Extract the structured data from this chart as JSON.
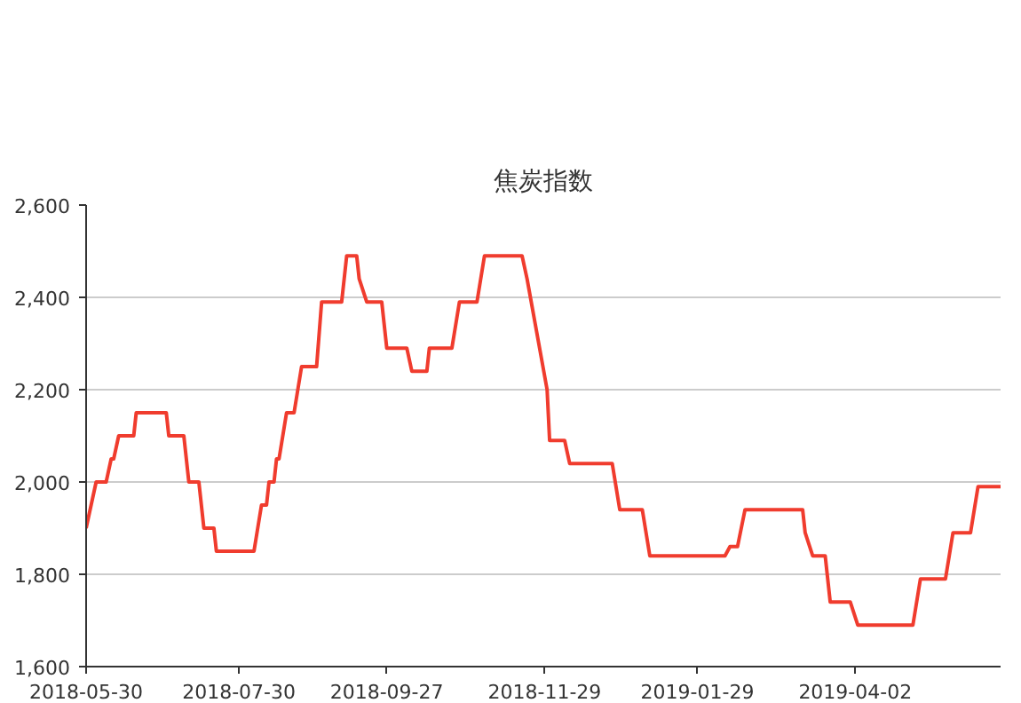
{
  "chart_data": {
    "type": "line",
    "title": "焦炭指数",
    "x": [
      "2018-05-30",
      "2018-06-03",
      "2018-06-07",
      "2018-06-09",
      "2018-06-10",
      "2018-06-12",
      "2018-06-18",
      "2018-06-19",
      "2018-07-01",
      "2018-07-02",
      "2018-07-08",
      "2018-07-10",
      "2018-07-14",
      "2018-07-16",
      "2018-07-20",
      "2018-07-21",
      "2018-08-05",
      "2018-08-08",
      "2018-08-10",
      "2018-08-11",
      "2018-08-13",
      "2018-08-14",
      "2018-08-15",
      "2018-08-18",
      "2018-08-21",
      "2018-08-24",
      "2018-08-30",
      "2018-09-01",
      "2018-09-09",
      "2018-09-11",
      "2018-09-15",
      "2018-09-16",
      "2018-09-19",
      "2018-09-25",
      "2018-09-27",
      "2018-10-05",
      "2018-10-07",
      "2018-10-13",
      "2018-10-14",
      "2018-10-23",
      "2018-10-26",
      "2018-11-02",
      "2018-11-05",
      "2018-11-20",
      "2018-11-22",
      "2018-11-30",
      "2018-12-01",
      "2018-12-07",
      "2018-12-09",
      "2018-12-26",
      "2018-12-29",
      "2019-01-07",
      "2019-01-10",
      "2019-02-09",
      "2019-02-11",
      "2019-02-14",
      "2019-02-17",
      "2019-03-12",
      "2019-03-13",
      "2019-03-16",
      "2019-03-21",
      "2019-03-23",
      "2019-03-31",
      "2019-04-03",
      "2019-04-25",
      "2019-04-28",
      "2019-05-08",
      "2019-05-11",
      "2019-05-18",
      "2019-05-21",
      "2019-05-30"
    ],
    "series": [
      {
        "color": "#f03c2e",
        "values": [
          1900,
          2000,
          2000,
          2050,
          2050,
          2100,
          2100,
          2150,
          2150,
          2100,
          2100,
          2000,
          2000,
          1900,
          1900,
          1850,
          1850,
          1950,
          1950,
          2000,
          2000,
          2050,
          2050,
          2150,
          2150,
          2250,
          2250,
          2390,
          2390,
          2490,
          2490,
          2440,
          2390,
          2390,
          2290,
          2290,
          2240,
          2240,
          2290,
          2290,
          2390,
          2390,
          2490,
          2490,
          2440,
          2200,
          2090,
          2090,
          2040,
          2040,
          1940,
          1940,
          1840,
          1840,
          1860,
          1860,
          1940,
          1940,
          1890,
          1840,
          1840,
          1740,
          1740,
          1690,
          1690,
          1790,
          1790,
          1890,
          1890,
          1990,
          1990
        ]
      }
    ],
    "xlim": [
      "2018-05-30",
      "2019-05-30"
    ],
    "xticks": [
      {
        "value": "2018-05-30",
        "label": "2018-05-30"
      },
      {
        "value": "2018-07-30",
        "label": "2018-07-30"
      },
      {
        "value": "2018-09-27",
        "label": "2018-09-27"
      },
      {
        "value": "2018-11-29",
        "label": "2018-11-29"
      },
      {
        "value": "2019-01-29",
        "label": "2019-01-29"
      },
      {
        "value": "2019-04-02",
        "label": "2019-04-02"
      }
    ],
    "ylim": [
      1600,
      2600
    ],
    "yticks": [
      {
        "value": 1600,
        "label": "1,600"
      },
      {
        "value": 1800,
        "label": "1,800"
      },
      {
        "value": 2000,
        "label": "2,000"
      },
      {
        "value": 2200,
        "label": "2,200"
      },
      {
        "value": 2400,
        "label": "2,400"
      },
      {
        "value": 2600,
        "label": "2,600"
      }
    ],
    "grid": "y",
    "marker": "none",
    "line_style": "solid"
  }
}
